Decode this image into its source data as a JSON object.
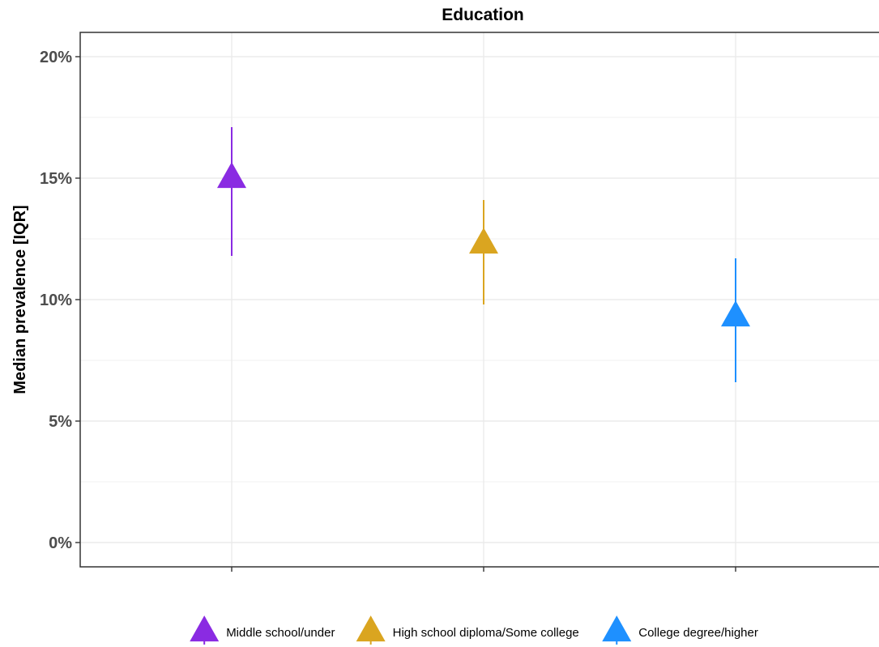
{
  "chart_data": {
    "type": "scatter",
    "title": "Education",
    "xlabel": "",
    "ylabel": "Median prevalence [IQR]",
    "ylim": [
      -0.01,
      0.21
    ],
    "yticks": [
      {
        "value": 0.0,
        "label": "0%"
      },
      {
        "value": 0.05,
        "label": "5%"
      },
      {
        "value": 0.1,
        "label": "10%"
      },
      {
        "value": 0.15,
        "label": "15%"
      },
      {
        "value": 0.2,
        "label": "20%"
      }
    ],
    "grid": true,
    "legend_position": "bottom",
    "marker": "triangle",
    "series": [
      {
        "name": "Middle school/under",
        "median": 0.15,
        "iqr_low": 0.118,
        "iqr_high": 0.171,
        "color": "#8a2be2"
      },
      {
        "name": "High school diploma/Some college",
        "median": 0.123,
        "iqr_low": 0.098,
        "iqr_high": 0.141,
        "color": "#daa520"
      },
      {
        "name": "College degree/higher",
        "median": 0.093,
        "iqr_low": 0.066,
        "iqr_high": 0.117,
        "color": "#1e90ff"
      }
    ]
  }
}
